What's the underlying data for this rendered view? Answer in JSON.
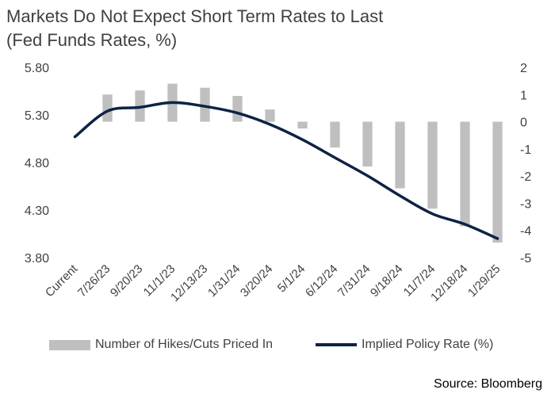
{
  "title_line1": "Markets Do Not Expect Short Term Rates to Last",
  "title_line2": "(Fed Funds Rates, %)",
  "source": "Source: Bloomberg",
  "colors": {
    "bars": "#bfbfbf",
    "line": "#0e2244",
    "text": "#404040"
  },
  "chart_data": {
    "type": "bar+line",
    "categories": [
      "Current",
      "7/26/23",
      "9/20/23",
      "11/1/23",
      "12/13/23",
      "1/31/24",
      "3/20/24",
      "5/1/24",
      "6/12/24",
      "7/31/24",
      "9/18/24",
      "11/7/24",
      "12/18/24",
      "1/29/25"
    ],
    "series": [
      {
        "name": "Number of Hikes/Cuts Priced In",
        "type": "bar",
        "axis": "right",
        "values": [
          0,
          1.0,
          1.15,
          1.4,
          1.25,
          0.95,
          0.45,
          -0.25,
          -0.95,
          -1.65,
          -2.45,
          -3.2,
          -3.85,
          -4.45
        ]
      },
      {
        "name": "Implied Policy Rate (%)",
        "type": "line",
        "axis": "left",
        "values": [
          5.07,
          5.34,
          5.38,
          5.43,
          5.39,
          5.32,
          5.2,
          5.04,
          4.85,
          4.66,
          4.45,
          4.26,
          4.15,
          4.0
        ]
      }
    ],
    "y_left": {
      "min": 3.8,
      "max": 5.8,
      "ticks": [
        "5.80",
        "5.30",
        "4.80",
        "4.30",
        "3.80"
      ]
    },
    "y_right": {
      "min": -5,
      "max": 2,
      "ticks": [
        "2",
        "1",
        "0",
        "-1",
        "-2",
        "-3",
        "-4",
        "-5"
      ]
    },
    "legend_position": "bottom",
    "grid": false
  }
}
